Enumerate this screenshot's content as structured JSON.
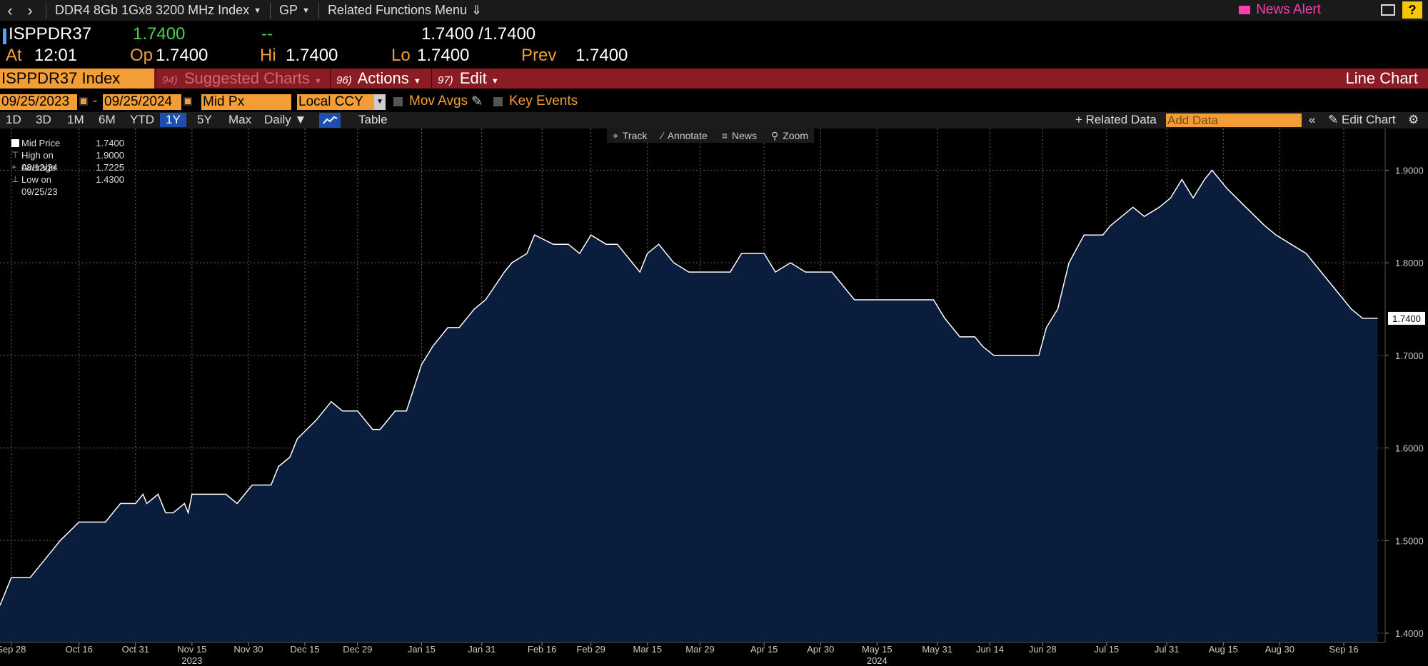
{
  "topbar": {
    "security_menu": "DDR4 8Gb 1Gx8 3200 MHz Index",
    "gp_menu": "GP",
    "related_menu": "Related Functions Menu",
    "news_alert": "News Alert",
    "help": "?"
  },
  "quote": {
    "ticker": "ISPPDR37",
    "last": "1.7400",
    "change": "--",
    "bid_ask": "1.7400 /1.7400",
    "at_label": "At",
    "time": "12:01",
    "open_label": "Op",
    "open": "1.7400",
    "hi_label": "Hi",
    "hi": "1.7400",
    "lo_label": "Lo",
    "lo": "1.7400",
    "prev_label": "Prev",
    "prev": "1.7400"
  },
  "redbar": {
    "ticker": "ISPPDR37 Index",
    "suggested_num": "94)",
    "suggested": "Suggested Charts",
    "actions_num": "96)",
    "actions": "Actions",
    "edit_num": "97)",
    "edit": "Edit",
    "chart_type": "Line Chart"
  },
  "daterow": {
    "start": "09/25/2023",
    "end": "09/25/2024",
    "field": "Mid Px",
    "currency": "Local CCY",
    "mov_avgs": "Mov Avgs",
    "key_events": "Key Events"
  },
  "toolbar": {
    "periods": [
      "1D",
      "3D",
      "1M",
      "6M",
      "YTD",
      "1Y",
      "5Y",
      "Max"
    ],
    "active_period": "1Y",
    "frequency": "Daily",
    "table": "Table",
    "related_data": "+ Related Data",
    "add_data_placeholder": "Add Data",
    "edit_chart": "Edit Chart"
  },
  "chart_tools": {
    "track": "Track",
    "annotate": "Annotate",
    "news": "News",
    "zoom": "Zoom"
  },
  "legend": [
    {
      "name": "Mid Price",
      "value": "1.7400"
    },
    {
      "name": "High on 08/12/24",
      "value": "1.9000"
    },
    {
      "name": "Average",
      "value": "1.7225"
    },
    {
      "name": "Low on 09/25/23",
      "value": "1.4300"
    }
  ],
  "colors": {
    "accent": "#f29d35",
    "redbar": "#8b1c24",
    "area_fill": "#0b1d3d",
    "line": "#ffffff",
    "up": "#4bd24b",
    "news": "#ff3cb4"
  },
  "chart_data": {
    "type": "area",
    "title": "",
    "xlabel": "",
    "ylabel": "",
    "ylim": [
      1.39,
      1.945
    ],
    "yticks": [
      "1.9000",
      "1.8000",
      "1.7000",
      "1.6000",
      "1.5000",
      "1.4000"
    ],
    "last_label": "1.7400",
    "xlim": [
      "2023-09-25",
      "2024-09-27"
    ],
    "xticks": [
      {
        "label": "Sep 28",
        "date": "2023-09-28"
      },
      {
        "label": "Oct 16",
        "date": "2023-10-16"
      },
      {
        "label": "Oct 31",
        "date": "2023-10-31"
      },
      {
        "label": "Nov 15",
        "date": "2023-11-15"
      },
      {
        "label": "Nov 30",
        "date": "2023-11-30"
      },
      {
        "label": "Dec 15",
        "date": "2023-12-15"
      },
      {
        "label": "Dec 29",
        "date": "2023-12-29"
      },
      {
        "label": "Jan 15",
        "date": "2024-01-15"
      },
      {
        "label": "Jan 31",
        "date": "2024-01-31"
      },
      {
        "label": "Feb 16",
        "date": "2024-02-16"
      },
      {
        "label": "Feb 29",
        "date": "2024-02-29"
      },
      {
        "label": "Mar 15",
        "date": "2024-03-15"
      },
      {
        "label": "Mar 29",
        "date": "2024-03-29"
      },
      {
        "label": "Apr 15",
        "date": "2024-04-15"
      },
      {
        "label": "Apr 30",
        "date": "2024-04-30"
      },
      {
        "label": "May 15",
        "date": "2024-05-15"
      },
      {
        "label": "May 31",
        "date": "2024-05-31"
      },
      {
        "label": "Jun 14",
        "date": "2024-06-14"
      },
      {
        "label": "Jun 28",
        "date": "2024-06-28"
      },
      {
        "label": "Jul 15",
        "date": "2024-07-15"
      },
      {
        "label": "Jul 31",
        "date": "2024-07-31"
      },
      {
        "label": "Aug 15",
        "date": "2024-08-15"
      },
      {
        "label": "Aug 30",
        "date": "2024-08-30"
      },
      {
        "label": "Sep 16",
        "date": "2024-09-16"
      }
    ],
    "year_labels": [
      {
        "label": "2023",
        "date": "2023-11-15"
      },
      {
        "label": "2024",
        "date": "2024-05-15"
      }
    ],
    "series": [
      {
        "name": "Mid Price",
        "points": [
          [
            "2023-09-25",
            1.43
          ],
          [
            "2023-09-28",
            1.46
          ],
          [
            "2023-10-03",
            1.46
          ],
          [
            "2023-10-05",
            1.47
          ],
          [
            "2023-10-09",
            1.49
          ],
          [
            "2023-10-11",
            1.5
          ],
          [
            "2023-10-16",
            1.52
          ],
          [
            "2023-10-23",
            1.52
          ],
          [
            "2023-10-25",
            1.53
          ],
          [
            "2023-10-27",
            1.54
          ],
          [
            "2023-10-31",
            1.54
          ],
          [
            "2023-11-02",
            1.55
          ],
          [
            "2023-11-03",
            1.54
          ],
          [
            "2023-11-06",
            1.55
          ],
          [
            "2023-11-08",
            1.53
          ],
          [
            "2023-11-10",
            1.53
          ],
          [
            "2023-11-13",
            1.54
          ],
          [
            "2023-11-14",
            1.53
          ],
          [
            "2023-11-15",
            1.55
          ],
          [
            "2023-11-24",
            1.55
          ],
          [
            "2023-11-27",
            1.54
          ],
          [
            "2023-11-29",
            1.55
          ],
          [
            "2023-12-01",
            1.56
          ],
          [
            "2023-12-06",
            1.56
          ],
          [
            "2023-12-08",
            1.58
          ],
          [
            "2023-12-11",
            1.59
          ],
          [
            "2023-12-13",
            1.61
          ],
          [
            "2023-12-18",
            1.63
          ],
          [
            "2023-12-20",
            1.64
          ],
          [
            "2023-12-22",
            1.65
          ],
          [
            "2023-12-25",
            1.64
          ],
          [
            "2023-12-29",
            1.64
          ],
          [
            "2024-01-02",
            1.62
          ],
          [
            "2024-01-04",
            1.62
          ],
          [
            "2024-01-08",
            1.64
          ],
          [
            "2024-01-11",
            1.64
          ],
          [
            "2024-01-15",
            1.69
          ],
          [
            "2024-01-18",
            1.71
          ],
          [
            "2024-01-22",
            1.73
          ],
          [
            "2024-01-25",
            1.73
          ],
          [
            "2024-01-29",
            1.75
          ],
          [
            "2024-02-01",
            1.76
          ],
          [
            "2024-02-06",
            1.79
          ],
          [
            "2024-02-08",
            1.8
          ],
          [
            "2024-02-12",
            1.81
          ],
          [
            "2024-02-14",
            1.83
          ],
          [
            "2024-02-19",
            1.82
          ],
          [
            "2024-02-23",
            1.82
          ],
          [
            "2024-02-26",
            1.81
          ],
          [
            "2024-02-29",
            1.83
          ],
          [
            "2024-03-04",
            1.82
          ],
          [
            "2024-03-07",
            1.82
          ],
          [
            "2024-03-11",
            1.8
          ],
          [
            "2024-03-13",
            1.79
          ],
          [
            "2024-03-15",
            1.81
          ],
          [
            "2024-03-18",
            1.82
          ],
          [
            "2024-03-22",
            1.8
          ],
          [
            "2024-03-26",
            1.79
          ],
          [
            "2024-04-03",
            1.79
          ],
          [
            "2024-04-06",
            1.79
          ],
          [
            "2024-04-09",
            1.81
          ],
          [
            "2024-04-11",
            1.81
          ],
          [
            "2024-04-15",
            1.81
          ],
          [
            "2024-04-18",
            1.79
          ],
          [
            "2024-04-22",
            1.8
          ],
          [
            "2024-04-26",
            1.79
          ],
          [
            "2024-05-03",
            1.79
          ],
          [
            "2024-05-07",
            1.77
          ],
          [
            "2024-05-09",
            1.76
          ],
          [
            "2024-05-14",
            1.76
          ],
          [
            "2024-05-30",
            1.76
          ],
          [
            "2024-06-02",
            1.74
          ],
          [
            "2024-06-06",
            1.72
          ],
          [
            "2024-06-10",
            1.72
          ],
          [
            "2024-06-12",
            1.71
          ],
          [
            "2024-06-15",
            1.7
          ],
          [
            "2024-06-21",
            1.7
          ],
          [
            "2024-06-27",
            1.7
          ],
          [
            "2024-06-29",
            1.73
          ],
          [
            "2024-07-02",
            1.75
          ],
          [
            "2024-07-05",
            1.8
          ],
          [
            "2024-07-09",
            1.83
          ],
          [
            "2024-07-14",
            1.83
          ],
          [
            "2024-07-16",
            1.84
          ],
          [
            "2024-07-19",
            1.85
          ],
          [
            "2024-07-22",
            1.86
          ],
          [
            "2024-07-25",
            1.85
          ],
          [
            "2024-07-29",
            1.86
          ],
          [
            "2024-08-01",
            1.87
          ],
          [
            "2024-08-04",
            1.89
          ],
          [
            "2024-08-07",
            1.87
          ],
          [
            "2024-08-10",
            1.89
          ],
          [
            "2024-08-12",
            1.9
          ],
          [
            "2024-08-16",
            1.88
          ],
          [
            "2024-08-21",
            1.86
          ],
          [
            "2024-08-26",
            1.84
          ],
          [
            "2024-08-29",
            1.83
          ],
          [
            "2024-09-02",
            1.82
          ],
          [
            "2024-09-06",
            1.81
          ],
          [
            "2024-09-10",
            1.79
          ],
          [
            "2024-09-14",
            1.77
          ],
          [
            "2024-09-18",
            1.75
          ],
          [
            "2024-09-21",
            1.74
          ],
          [
            "2024-09-25",
            1.74
          ]
        ]
      }
    ]
  }
}
